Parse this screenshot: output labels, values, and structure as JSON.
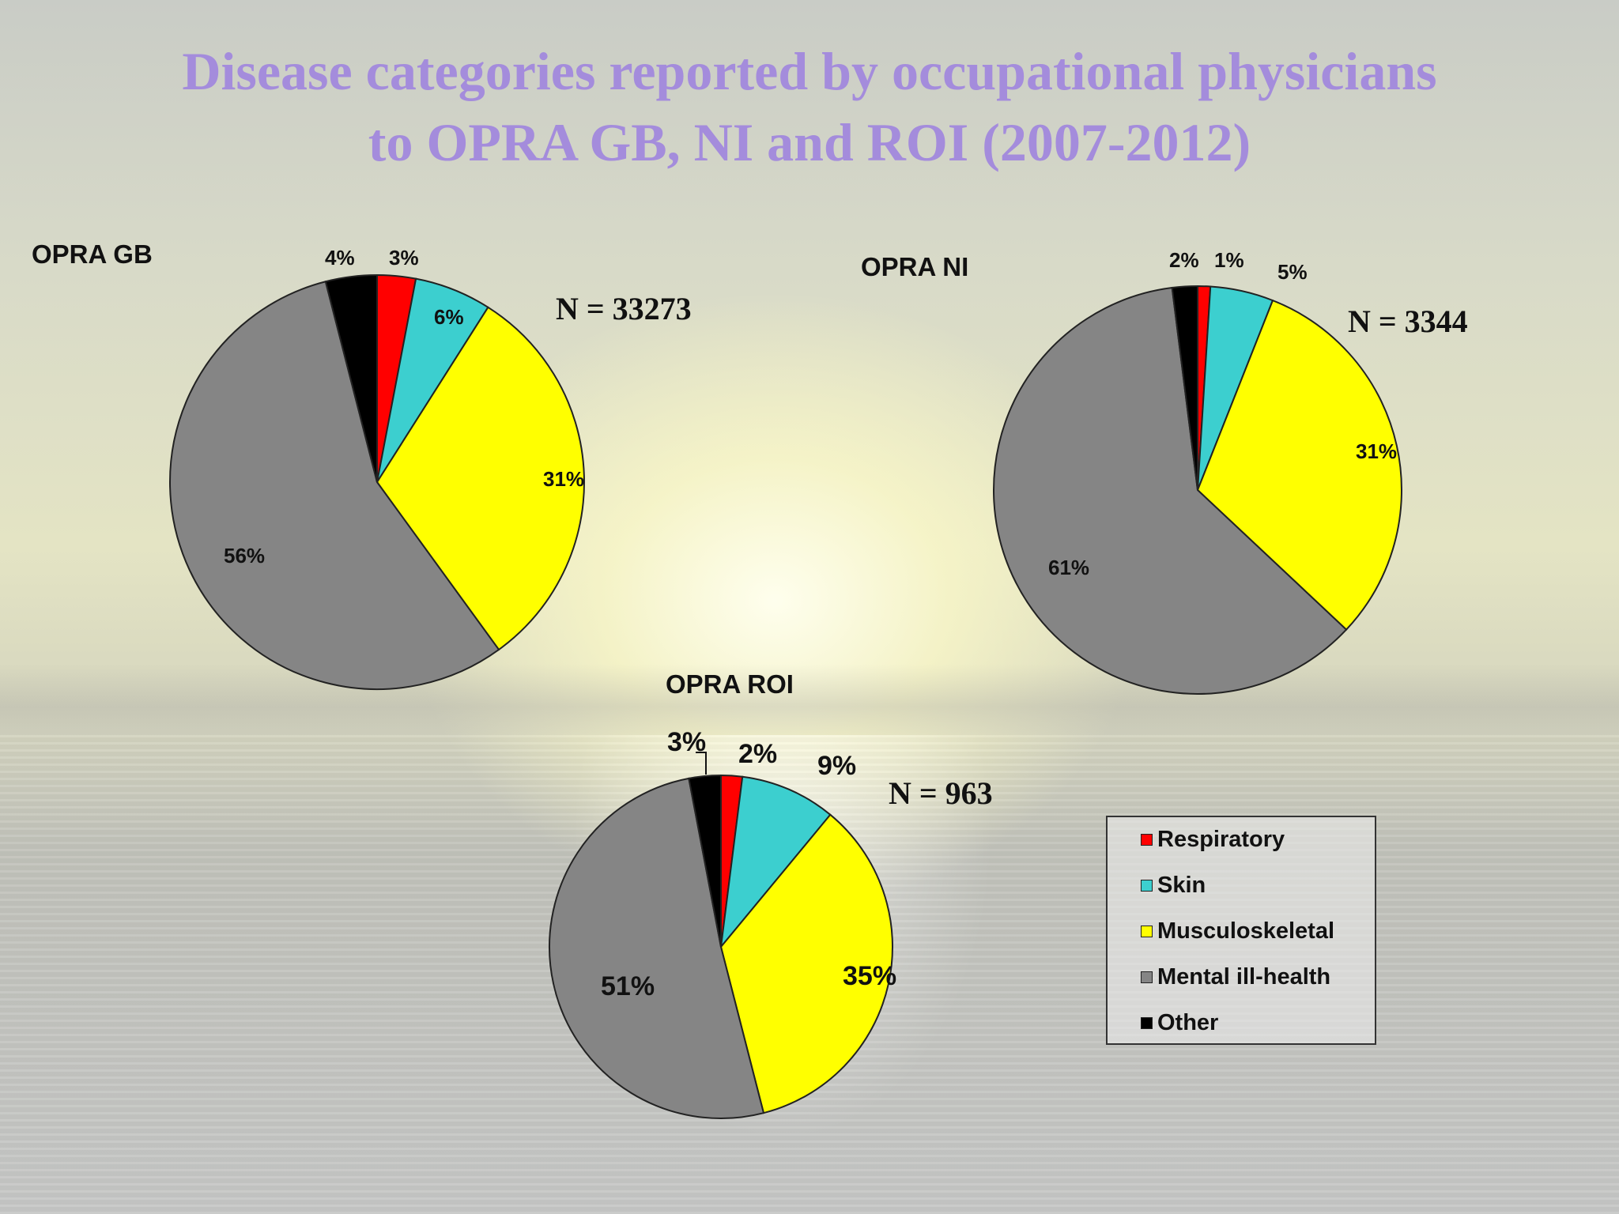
{
  "title": {
    "line1": "Disease categories reported by occupational physicians",
    "line2": "to OPRA GB, NI and ROI (2007-2012)"
  },
  "chart_data": [
    {
      "type": "pie",
      "title": "OPRA GB",
      "n_label": "N = 33273",
      "categories": [
        "Respiratory",
        "Skin",
        "Musculoskeletal",
        "Mental ill-health",
        "Other"
      ],
      "values": [
        3,
        6,
        31,
        56,
        4
      ],
      "labels": [
        "3%",
        "6%",
        "31%",
        "56%",
        "4%"
      ]
    },
    {
      "type": "pie",
      "title": "OPRA NI",
      "n_label": "N = 3344",
      "categories": [
        "Respiratory",
        "Skin",
        "Musculoskeletal",
        "Mental ill-health",
        "Other"
      ],
      "values": [
        1,
        5,
        31,
        61,
        2
      ],
      "labels": [
        "1%",
        "5%",
        "31%",
        "61%",
        "2%"
      ]
    },
    {
      "type": "pie",
      "title": "OPRA ROI",
      "n_label": "N = 963",
      "categories": [
        "Respiratory",
        "Skin",
        "Musculoskeletal",
        "Mental ill-health",
        "Other"
      ],
      "values": [
        2,
        9,
        35,
        51,
        3
      ],
      "labels": [
        "2%",
        "9%",
        "35%",
        "51%",
        "3%"
      ]
    }
  ],
  "legend": {
    "items": [
      {
        "label": "Respiratory",
        "color": "#ff0000"
      },
      {
        "label": "Skin",
        "color": "#3ccfcf"
      },
      {
        "label": "Musculoskeletal",
        "color": "#ffff00"
      },
      {
        "label": "Mental ill-health",
        "color": "#858585"
      },
      {
        "label": "Other",
        "color": "#000000"
      }
    ]
  }
}
